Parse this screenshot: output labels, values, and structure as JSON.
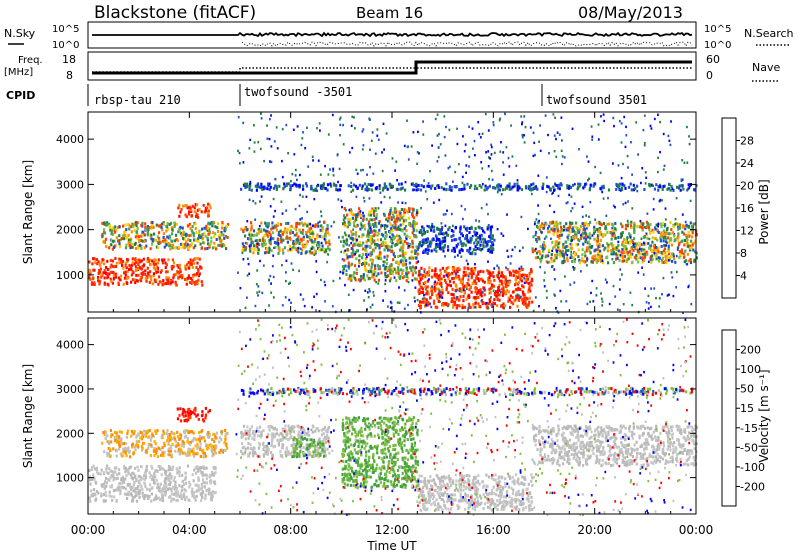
{
  "header": {
    "title": "Blackstone (fitACF)",
    "beam": "Beam 16",
    "date": "08/May/2013"
  },
  "status_panels": {
    "nsky_label": "N.Sky",
    "nsearch_label": "N.Search",
    "noise_ticks": [
      "10^5",
      "10^0"
    ],
    "freq_label_1": "Freq.",
    "freq_label_2": "[MHz]",
    "freq_ticks": [
      "18",
      "8"
    ],
    "nave_label": "Nave",
    "nave_ticks": [
      "60",
      "0"
    ],
    "cpid_label": "CPID",
    "cpid_segments": [
      {
        "name": "rbsp-tau 210",
        "start_hour": 0
      },
      {
        "name": "twofsound -3501",
        "start_hour": 6
      },
      {
        "name": "twofsound 3501",
        "start_hour": 18
      }
    ]
  },
  "chart_data": [
    {
      "type": "heatmap",
      "panel": "power",
      "ylabel": "Slant Range [km]",
      "xlabel": "Time UT",
      "x_ticks": [
        "00:00",
        "04:00",
        "08:00",
        "12:00",
        "16:00",
        "20:00",
        "00:00"
      ],
      "x_tick_hours": [
        0,
        4,
        8,
        12,
        16,
        20,
        24
      ],
      "xlim_hours": [
        0,
        24
      ],
      "y_ticks": [
        "1000",
        "2000",
        "3000",
        "4000"
      ],
      "y_tick_values": [
        1000,
        2000,
        3000,
        4000
      ],
      "ylim": [
        180,
        4600
      ],
      "colorbar_label": "Power [dB]",
      "colorbar_ticks": [
        "28",
        "24",
        "20",
        "16",
        "12",
        "8",
        "4"
      ],
      "colorbar_colors": [
        "#0000ff",
        "#2050d0",
        "#208040",
        "#40a060",
        "#80c040",
        "#ffcc00",
        "#ff8c00",
        "#ff4000",
        "#ff0000"
      ],
      "echo_regions": [
        {
          "t0": 0.0,
          "t1": 4.5,
          "r0": 800,
          "r1": 1400,
          "level": "high"
        },
        {
          "t0": 0.5,
          "t1": 5.5,
          "r0": 1600,
          "r1": 2200,
          "level": "mid"
        },
        {
          "t0": 3.5,
          "t1": 4.8,
          "r0": 2300,
          "r1": 2600,
          "level": "high"
        },
        {
          "t0": 6.0,
          "t1": 9.5,
          "r0": 1500,
          "r1": 2200,
          "level": "mid"
        },
        {
          "t0": 10.0,
          "t1": 13.0,
          "r0": 900,
          "r1": 2500,
          "level": "mid"
        },
        {
          "t0": 13.0,
          "t1": 17.5,
          "r0": 300,
          "r1": 1200,
          "level": "high"
        },
        {
          "t0": 13.0,
          "t1": 16.0,
          "r0": 1500,
          "r1": 2100,
          "level": "low"
        },
        {
          "t0": 17.5,
          "t1": 24.0,
          "r0": 1300,
          "r1": 2200,
          "level": "mid"
        },
        {
          "t0": 6.0,
          "t1": 24.0,
          "r0": 2900,
          "r1": 3050,
          "level": "low"
        }
      ]
    },
    {
      "type": "heatmap",
      "panel": "velocity",
      "ylabel": "Slant Range [km]",
      "xlabel": "Time UT",
      "x_ticks": [
        "00:00",
        "04:00",
        "08:00",
        "12:00",
        "16:00",
        "20:00",
        "00:00"
      ],
      "x_tick_hours": [
        0,
        4,
        8,
        12,
        16,
        20,
        24
      ],
      "xlim_hours": [
        0,
        24
      ],
      "y_ticks": [
        "1000",
        "2000",
        "3000",
        "4000"
      ],
      "y_tick_values": [
        1000,
        2000,
        3000,
        4000
      ],
      "ylim": [
        180,
        4600
      ],
      "colorbar_label": "Velocity [m s⁻¹]",
      "colorbar_ticks": [
        "200",
        "100",
        "50",
        "15",
        "-15",
        "-50",
        "-100",
        "-200"
      ],
      "colorbar_colors": [
        "#ff0000",
        "#ff4000",
        "#ff8c00",
        "#ffb000",
        "#c0c0c0",
        "#c0c0c0",
        "#80c040",
        "#40a040",
        "#2060c0",
        "#0000ff"
      ],
      "echo_regions": [
        {
          "t0": 0.0,
          "t1": 5.0,
          "r0": 500,
          "r1": 1300,
          "level": "ground"
        },
        {
          "t0": 0.5,
          "t1": 5.5,
          "r0": 1500,
          "r1": 2100,
          "level": "neg"
        },
        {
          "t0": 3.5,
          "t1": 4.8,
          "r0": 2300,
          "r1": 2600,
          "level": "strongneg"
        },
        {
          "t0": 6.0,
          "t1": 9.5,
          "r0": 1500,
          "r1": 2200,
          "level": "ground"
        },
        {
          "t0": 8.0,
          "t1": 9.3,
          "r0": 1500,
          "r1": 1950,
          "level": "pos"
        },
        {
          "t0": 10.0,
          "t1": 13.0,
          "r0": 800,
          "r1": 2400,
          "level": "pos"
        },
        {
          "t0": 13.0,
          "t1": 17.5,
          "r0": 300,
          "r1": 1100,
          "level": "ground"
        },
        {
          "t0": 17.5,
          "t1": 24.0,
          "r0": 1300,
          "r1": 2200,
          "level": "ground"
        },
        {
          "t0": 6.0,
          "t1": 24.0,
          "r0": 2900,
          "r1": 3050,
          "level": "mixed"
        }
      ]
    }
  ]
}
